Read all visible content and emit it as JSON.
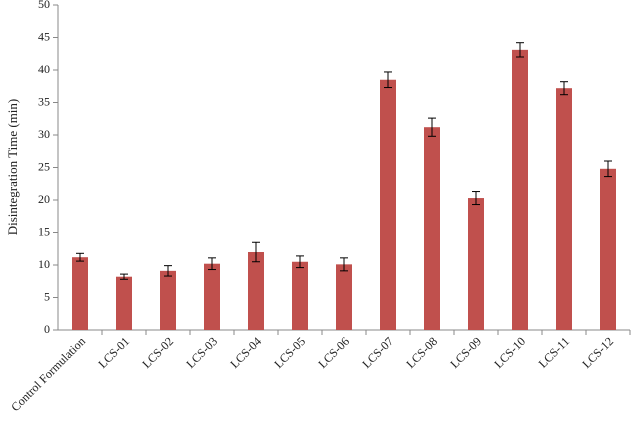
{
  "chart_data": {
    "type": "bar",
    "y_label": "Disintegration Time (min)",
    "categories": [
      "Control Formulation",
      "LCS-01",
      "LCS-02",
      "LCS-03",
      "LCS-04",
      "LCS-05",
      "LCS-06",
      "LCS-07",
      "LCS-08",
      "LCS-09",
      "LCS-10",
      "LCS-11",
      "LCS-12"
    ],
    "values": [
      11.2,
      8.2,
      9.1,
      10.2,
      12.0,
      10.5,
      10.1,
      38.5,
      31.2,
      20.3,
      43.1,
      37.2,
      24.8
    ],
    "errors": [
      0.6,
      0.4,
      0.8,
      0.9,
      1.5,
      0.9,
      1.0,
      1.2,
      1.4,
      1.0,
      1.1,
      1.0,
      1.2
    ],
    "color": "#c0504d",
    "ylim": [
      0,
      50
    ],
    "yticks": [
      0,
      5,
      10,
      15,
      20,
      25,
      30,
      35,
      40,
      45,
      50
    ],
    "grid": false
  }
}
